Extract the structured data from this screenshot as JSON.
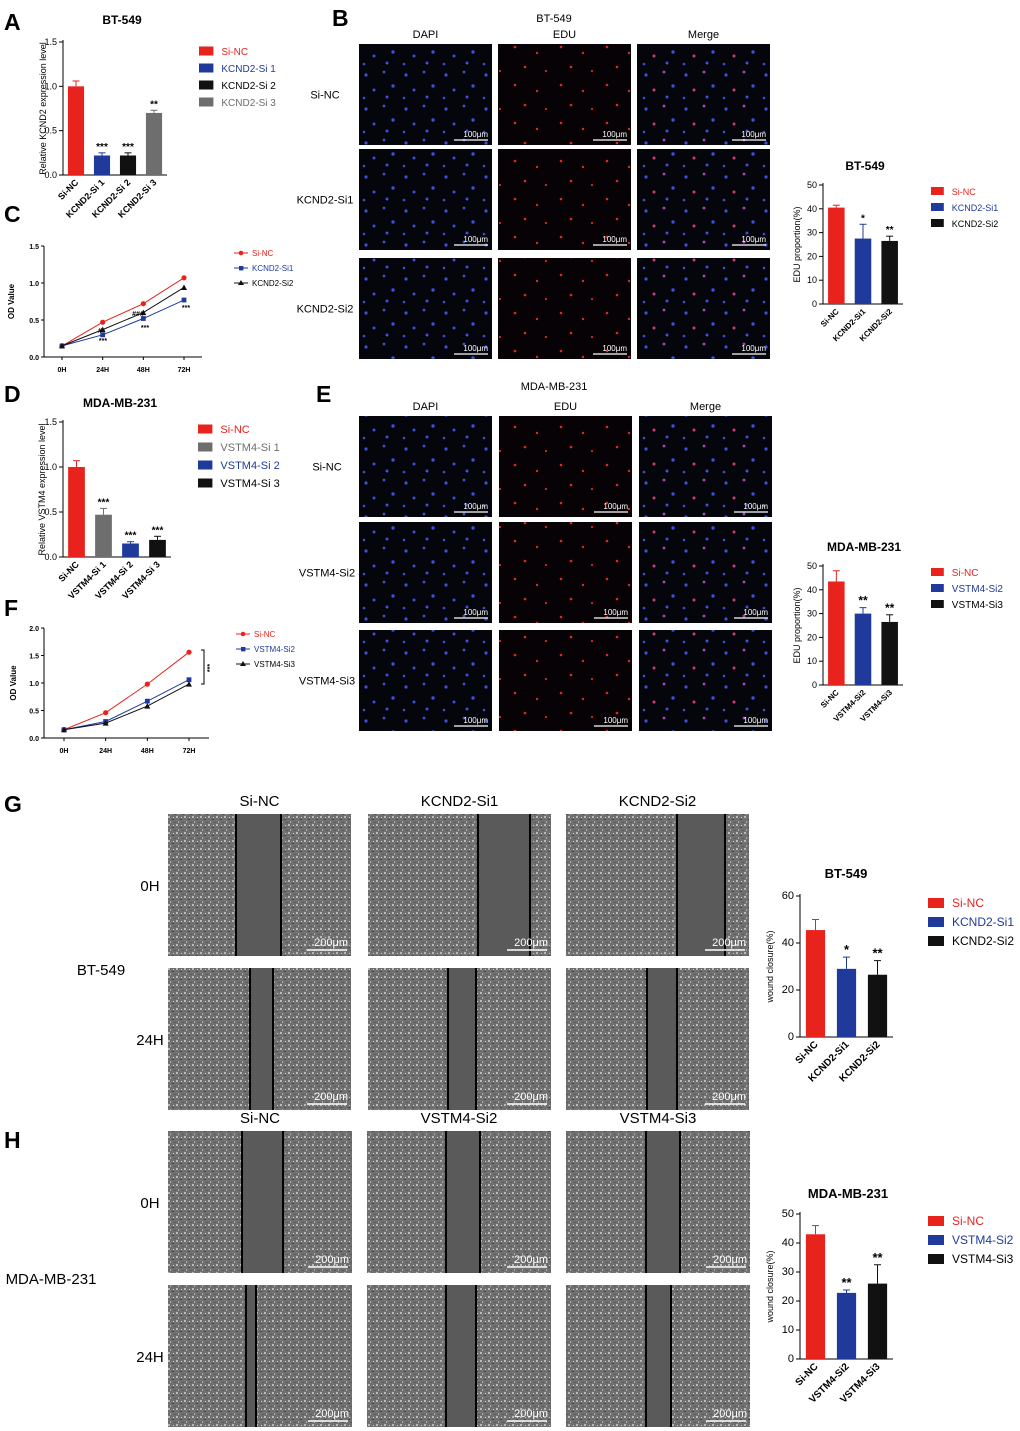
{
  "colors": {
    "red": "#e8221c",
    "blue": "#1f3a9a",
    "black": "#111111",
    "gray": "#6e6e6e",
    "fluor_bg": "#05050c",
    "wound_bg": "#6f6f6f"
  },
  "panels": {
    "A": {
      "letter": "A",
      "title": "BT-549",
      "ylabel": "Relative KCND2 expression level"
    },
    "B": {
      "letter": "B",
      "title": "BT-549",
      "cols": [
        "DAPI",
        "EDU",
        "Merge"
      ],
      "rows": [
        "Si-NC",
        "KCND2-Si1",
        "KCND2-Si2"
      ],
      "scale": "100μm"
    },
    "B_chart": {
      "title": "BT-549",
      "ylabel": "EDU proportion(%)"
    },
    "C": {
      "letter": "C",
      "ylabel": "OD Value"
    },
    "D": {
      "letter": "D",
      "title": "MDA-MB-231",
      "ylabel": "Relative VSTM4 expression level"
    },
    "E": {
      "letter": "E",
      "title": "MDA-MB-231",
      "cols": [
        "DAPI",
        "EDU",
        "Merge"
      ],
      "rows": [
        "Si-NC",
        "VSTM4-Si2",
        "VSTM4-Si3"
      ],
      "scale": "100μm"
    },
    "E_chart": {
      "title": "MDA-MB-231",
      "ylabel": "EDU proportion(%)"
    },
    "F": {
      "letter": "F",
      "ylabel": "OD Value"
    },
    "G": {
      "letter": "G",
      "cols": [
        "Si-NC",
        "KCND2-Si1",
        "KCND2-Si2"
      ],
      "rows": [
        "0H",
        "24H"
      ],
      "cell": "BT-549",
      "scale": "200μm"
    },
    "G_chart": {
      "title": "BT-549",
      "ylabel": "wound closure(%)"
    },
    "H": {
      "letter": "H",
      "cols": [
        "Si-NC",
        "VSTM4-Si2",
        "VSTM4-Si3"
      ],
      "rows": [
        "0H",
        "24H"
      ],
      "cell": "MDA-MB-231",
      "scale": "200μm"
    },
    "H_chart": {
      "title": "MDA-MB-231",
      "ylabel": "wound closure(%)"
    }
  },
  "chart_data": [
    {
      "id": "A",
      "type": "bar",
      "title": "BT-549",
      "ylabel": "Relative KCND2 expression level",
      "categories": [
        "Si-NC",
        "KCND2-Si 1",
        "KCND2-Si 2",
        "KCND2-Si 3"
      ],
      "values": [
        1.0,
        0.22,
        0.22,
        0.7
      ],
      "errors": [
        0.06,
        0.03,
        0.03,
        0.03
      ],
      "sig": [
        "",
        "***",
        "***",
        "**"
      ],
      "colors": [
        "#e8221c",
        "#1f3a9a",
        "#111111",
        "#6e6e6e"
      ],
      "ylim": [
        0,
        1.5
      ],
      "yticks": [
        0.0,
        0.5,
        1.0,
        1.5
      ],
      "yticklabels": [
        "0.0",
        "0.5",
        "1.0",
        "1.5"
      ],
      "legend": [
        "Si-NC",
        "KCND2-Si 1",
        "KCND2-Si 2",
        "KCND2-Si 3"
      ],
      "legend_position": "right"
    },
    {
      "id": "B_chart",
      "type": "bar",
      "title": "BT-549",
      "ylabel": "EDU proportion(%)",
      "categories": [
        "Si-NC",
        "KCND2-Si1",
        "KCND2-Si2"
      ],
      "values": [
        40.5,
        27.5,
        26.5
      ],
      "errors": [
        1.0,
        6.0,
        2.0
      ],
      "sig": [
        "",
        "*",
        "**"
      ],
      "colors": [
        "#e8221c",
        "#1f3a9a",
        "#111111"
      ],
      "ylim": [
        0,
        50
      ],
      "yticks": [
        0,
        10,
        20,
        30,
        40,
        50
      ],
      "yticklabels": [
        "0",
        "10",
        "20",
        "30",
        "40",
        "50"
      ],
      "legend": [
        "Si-NC",
        "KCND2-Si1",
        "KCND2-Si2"
      ],
      "legend_position": "right"
    },
    {
      "id": "C",
      "type": "line",
      "ylabel": "OD Value",
      "x": [
        "0H",
        "24H",
        "48H",
        "72H"
      ],
      "series": [
        {
          "name": "Si-NC",
          "values": [
            0.15,
            0.47,
            0.72,
            1.07
          ],
          "marker": "circle",
          "color": "#e8221c"
        },
        {
          "name": "KCND2-Si1",
          "values": [
            0.15,
            0.3,
            0.52,
            0.77
          ],
          "marker": "square",
          "color": "#1f3a9a"
        },
        {
          "name": "KCND2-Si2",
          "values": [
            0.15,
            0.37,
            0.6,
            0.94
          ],
          "marker": "triangle",
          "color": "#111111"
        }
      ],
      "annotations": [
        "***",
        "***",
        "***",
        "###",
        "#",
        "*"
      ],
      "ylim": [
        0,
        1.5
      ],
      "yticks": [
        0.0,
        0.5,
        1.0,
        1.5
      ],
      "yticklabels": [
        "0.0",
        "0.5",
        "1.0",
        "1.5"
      ],
      "legend_position": "right"
    },
    {
      "id": "D",
      "type": "bar",
      "title": "MDA-MB-231",
      "ylabel": "Relative VSTM4 expression level",
      "categories": [
        "Si-NC",
        "VSTM4-Si 1",
        "VSTM4-Si 2",
        "VSTM4-Si 3"
      ],
      "values": [
        1.0,
        0.47,
        0.15,
        0.19
      ],
      "errors": [
        0.07,
        0.07,
        0.02,
        0.04
      ],
      "sig": [
        "",
        "***",
        "***",
        "***"
      ],
      "colors": [
        "#e8221c",
        "#6e6e6e",
        "#1f3a9a",
        "#111111"
      ],
      "ylim": [
        0,
        1.5
      ],
      "yticks": [
        0.0,
        0.5,
        1.0,
        1.5
      ],
      "yticklabels": [
        "0.0",
        "0.5",
        "1.0",
        "1.5"
      ],
      "legend": [
        "Si-NC",
        "VSTM4-Si 1",
        "VSTM4-Si 2",
        "VSTM4-Si 3"
      ],
      "legend_position": "right"
    },
    {
      "id": "E_chart",
      "type": "bar",
      "title": "MDA-MB-231",
      "ylabel": "EDU proportion(%)",
      "categories": [
        "Si-NC",
        "VSTM4-Si2",
        "VSTM4-Si3"
      ],
      "values": [
        43.5,
        30.0,
        26.5
      ],
      "errors": [
        4.5,
        2.5,
        3.0
      ],
      "sig": [
        "",
        "**",
        "**"
      ],
      "colors": [
        "#e8221c",
        "#1f3a9a",
        "#111111"
      ],
      "ylim": [
        0,
        50
      ],
      "yticks": [
        0,
        10,
        20,
        30,
        40,
        50
      ],
      "yticklabels": [
        "0",
        "10",
        "20",
        "30",
        "40",
        "50"
      ],
      "legend": [
        "Si-NC",
        "VSTM4-Si2",
        "VSTM4-Si3"
      ],
      "legend_position": "right"
    },
    {
      "id": "F",
      "type": "line",
      "ylabel": "OD Value",
      "x": [
        "0H",
        "24H",
        "48H",
        "72H"
      ],
      "series": [
        {
          "name": "Si-NC",
          "values": [
            0.15,
            0.46,
            0.98,
            1.56
          ],
          "marker": "circle",
          "color": "#e8221c"
        },
        {
          "name": "VSTM4-Si2",
          "values": [
            0.15,
            0.3,
            0.67,
            1.06
          ],
          "marker": "square",
          "color": "#1f3a9a"
        },
        {
          "name": "VSTM4-Si3",
          "values": [
            0.15,
            0.27,
            0.58,
            0.98
          ],
          "marker": "triangle",
          "color": "#111111"
        }
      ],
      "annotations": [
        "***"
      ],
      "ylim": [
        0,
        2.0
      ],
      "yticks": [
        0.0,
        0.5,
        1.0,
        1.5,
        2.0
      ],
      "yticklabels": [
        "0.0",
        "0.5",
        "1.0",
        "1.5",
        "2.0"
      ],
      "legend_position": "right"
    },
    {
      "id": "G_chart",
      "type": "bar",
      "title": "BT-549",
      "ylabel": "wound closure(%)",
      "categories": [
        "Si-NC",
        "KCND2-Si1",
        "KCND2-Si2"
      ],
      "values": [
        45.5,
        29.0,
        26.5
      ],
      "errors": [
        4.5,
        5.0,
        6.0
      ],
      "sig": [
        "",
        "*",
        "**"
      ],
      "colors": [
        "#e8221c",
        "#1f3a9a",
        "#111111"
      ],
      "ylim": [
        0,
        60
      ],
      "yticks": [
        0,
        20,
        40,
        60
      ],
      "yticklabels": [
        "0",
        "20",
        "40",
        "60"
      ],
      "legend": [
        "Si-NC",
        "KCND2-Si1",
        "KCND2-Si2"
      ],
      "legend_position": "right"
    },
    {
      "id": "H_chart",
      "type": "bar",
      "title": "MDA-MB-231",
      "ylabel": "wound closure(%)",
      "categories": [
        "Si-NC",
        "VSTM4-Si2",
        "VSTM4-Si3"
      ],
      "values": [
        43.0,
        22.8,
        26.0
      ],
      "errors": [
        3.0,
        1.0,
        6.5
      ],
      "sig": [
        "",
        "**",
        "**"
      ],
      "colors": [
        "#e8221c",
        "#1f3a9a",
        "#111111"
      ],
      "ylim": [
        0,
        50
      ],
      "yticks": [
        0,
        10,
        20,
        30,
        40,
        50
      ],
      "yticklabels": [
        "0",
        "10",
        "20",
        "30",
        "40",
        "50"
      ],
      "legend": [
        "Si-NC",
        "VSTM4-Si2",
        "VSTM4-Si3"
      ],
      "legend_position": "right"
    }
  ]
}
